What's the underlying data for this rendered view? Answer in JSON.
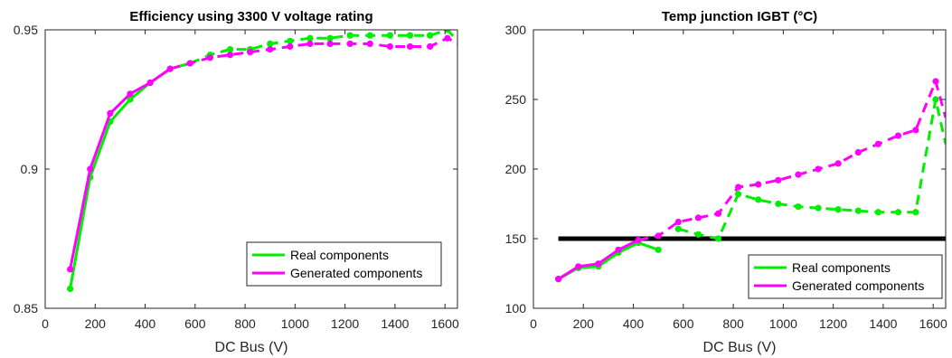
{
  "chart_data": [
    {
      "type": "line",
      "title": "Efficiency using 3300 V voltage rating",
      "xlabel": "DC Bus (V)",
      "ylabel": "",
      "xlim": [
        0,
        1650
      ],
      "ylim": [
        0.85,
        0.95
      ],
      "xticks": [
        "0",
        "200",
        "400",
        "600",
        "800",
        "1000",
        "1200",
        "1400",
        "1600"
      ],
      "yticks": [
        "0.85",
        "0.9",
        "0.95"
      ],
      "grid": false,
      "legend_position": "bottom-right",
      "legend": [
        "Real components",
        "Generated components"
      ],
      "series": [
        {
          "name": "Real components",
          "color": "#00ee00",
          "solid_segment": {
            "x": [
              100,
              180,
              260,
              340,
              420,
              500,
              580
            ],
            "y": [
              0.857,
              0.897,
              0.917,
              0.925,
              0.931,
              0.936,
              0.938
            ]
          },
          "dashed_segment": {
            "x": [
              580,
              660,
              740,
              820,
              900,
              980,
              1060,
              1140,
              1220,
              1300,
              1380,
              1460,
              1540,
              1610,
              1650
            ],
            "y": [
              0.938,
              0.941,
              0.943,
              0.943,
              0.945,
              0.946,
              0.947,
              0.947,
              0.948,
              0.948,
              0.948,
              0.948,
              0.948,
              0.95,
              0.946
            ]
          },
          "markers": {
            "x": [
              100,
              180,
              260,
              340,
              420,
              500,
              580,
              660,
              740,
              820,
              900,
              980,
              1060,
              1140,
              1220,
              1300,
              1380,
              1460,
              1540,
              1610
            ],
            "y": [
              0.857,
              0.897,
              0.917,
              0.925,
              0.931,
              0.936,
              0.938,
              0.941,
              0.943,
              0.943,
              0.945,
              0.946,
              0.947,
              0.947,
              0.948,
              0.948,
              0.948,
              0.948,
              0.948,
              0.95
            ]
          }
        },
        {
          "name": "Generated components",
          "color": "#ff00ff",
          "solid_segment": {
            "x": [
              100,
              180,
              260,
              340,
              420,
              500
            ],
            "y": [
              0.864,
              0.9,
              0.92,
              0.927,
              0.931,
              0.936
            ]
          },
          "dashed_segment": {
            "x": [
              500,
              580,
              660,
              740,
              820,
              900,
              980,
              1060,
              1140,
              1220,
              1300,
              1380,
              1460,
              1540,
              1610,
              1650
            ],
            "y": [
              0.936,
              0.938,
              0.94,
              0.941,
              0.942,
              0.943,
              0.944,
              0.945,
              0.945,
              0.945,
              0.945,
              0.944,
              0.944,
              0.944,
              0.947,
              0.945
            ]
          },
          "markers": {
            "x": [
              100,
              180,
              260,
              340,
              420,
              500,
              580,
              660,
              740,
              820,
              900,
              980,
              1060,
              1140,
              1220,
              1300,
              1380,
              1460,
              1540,
              1610
            ],
            "y": [
              0.864,
              0.9,
              0.92,
              0.927,
              0.931,
              0.936,
              0.938,
              0.94,
              0.941,
              0.942,
              0.943,
              0.944,
              0.945,
              0.945,
              0.945,
              0.945,
              0.944,
              0.944,
              0.944,
              0.947
            ]
          }
        }
      ]
    },
    {
      "type": "line",
      "title": "Temp junction IGBT (°C)",
      "xlabel": "DC Bus (V)",
      "ylabel": "",
      "xlim": [
        0,
        1650
      ],
      "ylim": [
        100,
        300
      ],
      "xticks": [
        "0",
        "200",
        "400",
        "600",
        "800",
        "1000",
        "1200",
        "1400",
        "1600"
      ],
      "yticks": [
        "100",
        "150",
        "200",
        "250",
        "300"
      ],
      "grid": false,
      "legend_position": "bottom-right",
      "legend": [
        "Real components",
        "Generated components"
      ],
      "reference_line": {
        "y": 150,
        "x_range": [
          100,
          1650
        ],
        "color": "#000000"
      },
      "series": [
        {
          "name": "Real components",
          "color": "#00ee00",
          "solid_segment": {
            "x": [
              100,
              180,
              260,
              340,
              420,
              500
            ],
            "y": [
              121,
              129,
              130,
              140,
              147,
              142
            ]
          },
          "dashed_segment": {
            "x": [
              580,
              660,
              740,
              820,
              900,
              980,
              1060,
              1140,
              1220,
              1300,
              1380,
              1460,
              1530,
              1610,
              1650
            ],
            "y": [
              157,
              153,
              150,
              182,
              178,
              175,
              173,
              172,
              171,
              170,
              169,
              169,
              169,
              250,
              218
            ]
          },
          "markers": {
            "x": [
              100,
              180,
              260,
              340,
              420,
              500,
              580,
              660,
              740,
              820,
              900,
              980,
              1060,
              1140,
              1220,
              1300,
              1380,
              1460,
              1530,
              1610
            ],
            "y": [
              121,
              129,
              130,
              140,
              147,
              142,
              157,
              153,
              150,
              182,
              178,
              175,
              173,
              172,
              171,
              170,
              169,
              169,
              169,
              250
            ]
          }
        },
        {
          "name": "Generated components",
          "color": "#ff00ff",
          "solid_segment": {
            "x": [
              100,
              180,
              260,
              340,
              420
            ],
            "y": [
              121,
              130,
              132,
              142,
              149
            ]
          },
          "dashed_segment": {
            "x": [
              420,
              500,
              580,
              660,
              740,
              820,
              900,
              980,
              1060,
              1140,
              1220,
              1300,
              1380,
              1460,
              1530,
              1610,
              1650
            ],
            "y": [
              149,
              152,
              162,
              165,
              168,
              187,
              189,
              192,
              196,
              200,
              204,
              212,
              218,
              224,
              228,
              263,
              237
            ]
          },
          "markers": {
            "x": [
              100,
              180,
              260,
              340,
              420,
              500,
              580,
              660,
              740,
              820,
              900,
              980,
              1060,
              1140,
              1220,
              1300,
              1380,
              1460,
              1530,
              1610
            ],
            "y": [
              121,
              130,
              132,
              142,
              149,
              152,
              162,
              165,
              168,
              187,
              189,
              192,
              196,
              200,
              204,
              212,
              218,
              224,
              228,
              263
            ]
          }
        }
      ]
    }
  ]
}
